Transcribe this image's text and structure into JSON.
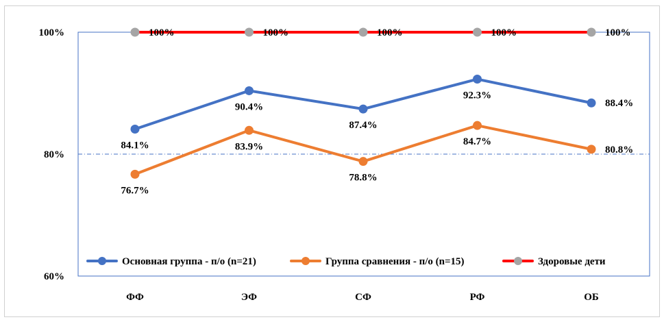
{
  "chart_data": {
    "type": "line",
    "categories": [
      "ФФ",
      "ЭФ",
      "СФ",
      "РФ",
      "ОБ"
    ],
    "ylim": [
      60,
      100
    ],
    "y_ticks": [
      {
        "value": 100,
        "label": "100%"
      },
      {
        "value": 80,
        "label": "80%"
      },
      {
        "value": 60,
        "label": "60%"
      }
    ],
    "gridlines": [
      80
    ],
    "legend_position": "bottom-inside",
    "series": [
      {
        "name": "Основная группа - п/о (n=21)",
        "color": "#4472C4",
        "values": [
          84.1,
          90.4,
          87.4,
          92.3,
          88.4
        ],
        "labels": [
          "84.1%",
          "90.4%",
          "87.4%",
          "92.3%",
          "88.4%"
        ],
        "label_placement": [
          "below",
          "below",
          "below",
          "below",
          "right"
        ]
      },
      {
        "name": "Группа сравнения - п/о (n=15)",
        "color": "#ED7D31",
        "values": [
          76.7,
          83.9,
          78.8,
          84.7,
          80.8
        ],
        "labels": [
          "76.7%",
          "83.9%",
          "78.8%",
          "84.7%",
          "80.8%"
        ],
        "label_placement": [
          "below",
          "below",
          "below",
          "below",
          "right"
        ]
      },
      {
        "name": "Здоровые дети",
        "color": "#FF0000",
        "marker_color": "#A5A5A5",
        "values": [
          100,
          100,
          100,
          100,
          100
        ],
        "labels": [
          "100%",
          "100%",
          "100%",
          "100%",
          "100%"
        ],
        "label_placement": [
          "right",
          "right",
          "right",
          "right",
          "right"
        ]
      }
    ]
  }
}
